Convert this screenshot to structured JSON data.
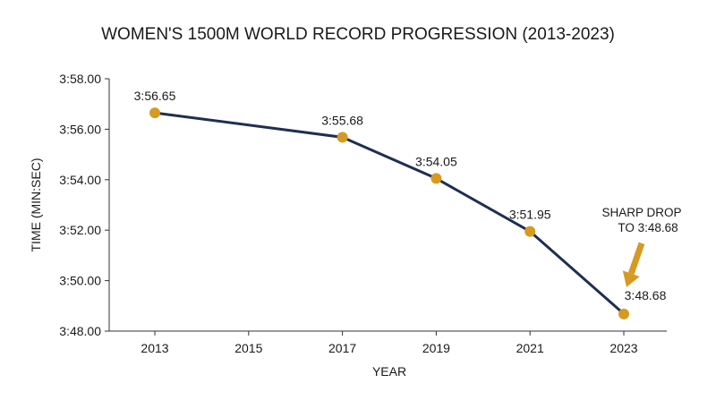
{
  "chart_data": {
    "type": "line",
    "title": "WOMEN'S 1500M WORLD RECORD PROGRESSION (2013-2023)",
    "xlabel": "YEAR",
    "ylabel": "TIME (MIN:SEC)",
    "x_ticks": [
      2013,
      2015,
      2017,
      2019,
      2021,
      2023
    ],
    "xlim": [
      2013,
      2023
    ],
    "ylim_seconds": [
      228.0,
      238.0
    ],
    "y_ticks": [
      {
        "value": 228.0,
        "label": "3:48.00"
      },
      {
        "value": 230.0,
        "label": "3:50.00"
      },
      {
        "value": 232.0,
        "label": "3:52.00"
      },
      {
        "value": 234.0,
        "label": "3:54.00"
      },
      {
        "value": 236.0,
        "label": "3:56.00"
      },
      {
        "value": 238.0,
        "label": "3:58.00"
      }
    ],
    "series": [
      {
        "points": [
          {
            "x": 2013,
            "y": 236.65,
            "label": "3:56.65"
          },
          {
            "x": 2017,
            "y": 235.68,
            "label": "3:55.68"
          },
          {
            "x": 2019,
            "y": 234.05,
            "label": "3:54.05"
          },
          {
            "x": 2021,
            "y": 231.95,
            "label": "3:51.95"
          },
          {
            "x": 2023,
            "y": 228.68,
            "label": "3:48.68"
          }
        ]
      }
    ],
    "annotation": {
      "lines": [
        "SHARP DROP",
        "TO 3:48.68"
      ],
      "target_x": 2023,
      "target_y": 228.68
    },
    "grid": false,
    "colors": {
      "line": "#1e2f52",
      "marker": "#d69a22",
      "arrow": "#d69a22",
      "axis": "#333333",
      "text": "#1a1a1a"
    }
  }
}
